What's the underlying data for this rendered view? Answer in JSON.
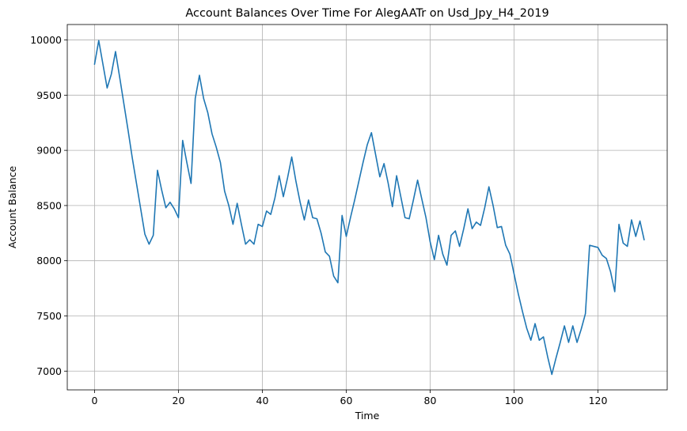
{
  "chart_data": {
    "type": "line",
    "title": "Account Balances Over Time For AlegAATr on Usd_Jpy_H4_2019",
    "xlabel": "Time",
    "ylabel": "Account Balance",
    "xlim": [
      -6.5,
      136.5
    ],
    "ylim": [
      6830,
      10140
    ],
    "xticks": [
      0,
      20,
      40,
      60,
      80,
      100,
      120
    ],
    "yticks": [
      7000,
      7500,
      8000,
      8500,
      9000,
      9500,
      10000
    ],
    "grid": true,
    "colors": {
      "series": "#1f77b4"
    },
    "series": [
      {
        "values": [
          9780,
          9995,
          9780,
          9565,
          9690,
          9895,
          9660,
          9420,
          9180,
          8930,
          8700,
          8470,
          8240,
          8150,
          8230,
          8820,
          8640,
          8480,
          8530,
          8470,
          8390,
          9090,
          8890,
          8700,
          9470,
          9680,
          9470,
          9340,
          9150,
          9030,
          8890,
          8630,
          8500,
          8330,
          8520,
          8330,
          8150,
          8190,
          8150,
          8330,
          8310,
          8450,
          8420,
          8570,
          8770,
          8580,
          8750,
          8940,
          8720,
          8530,
          8370,
          8550,
          8390,
          8380,
          8250,
          8080,
          8040,
          7860,
          7800,
          8410,
          8220,
          8390,
          8550,
          8720,
          8890,
          9050,
          9160,
          8960,
          8760,
          8880,
          8700,
          8490,
          8770,
          8580,
          8390,
          8380,
          8550,
          8730,
          8560,
          8390,
          8170,
          8010,
          8230,
          8060,
          7960,
          8230,
          8270,
          8130,
          8290,
          8470,
          8290,
          8350,
          8320,
          8480,
          8670,
          8500,
          8300,
          8310,
          8140,
          8060,
          7880,
          7700,
          7540,
          7390,
          7280,
          7430,
          7280,
          7310,
          7130,
          6970,
          7120,
          7260,
          7410,
          7260,
          7410,
          7260,
          7380,
          7520,
          8140,
          8130,
          8120,
          8050,
          8020,
          7900,
          7720,
          8330,
          8160,
          8130,
          8370,
          8220,
          8360,
          8190
        ]
      }
    ]
  }
}
